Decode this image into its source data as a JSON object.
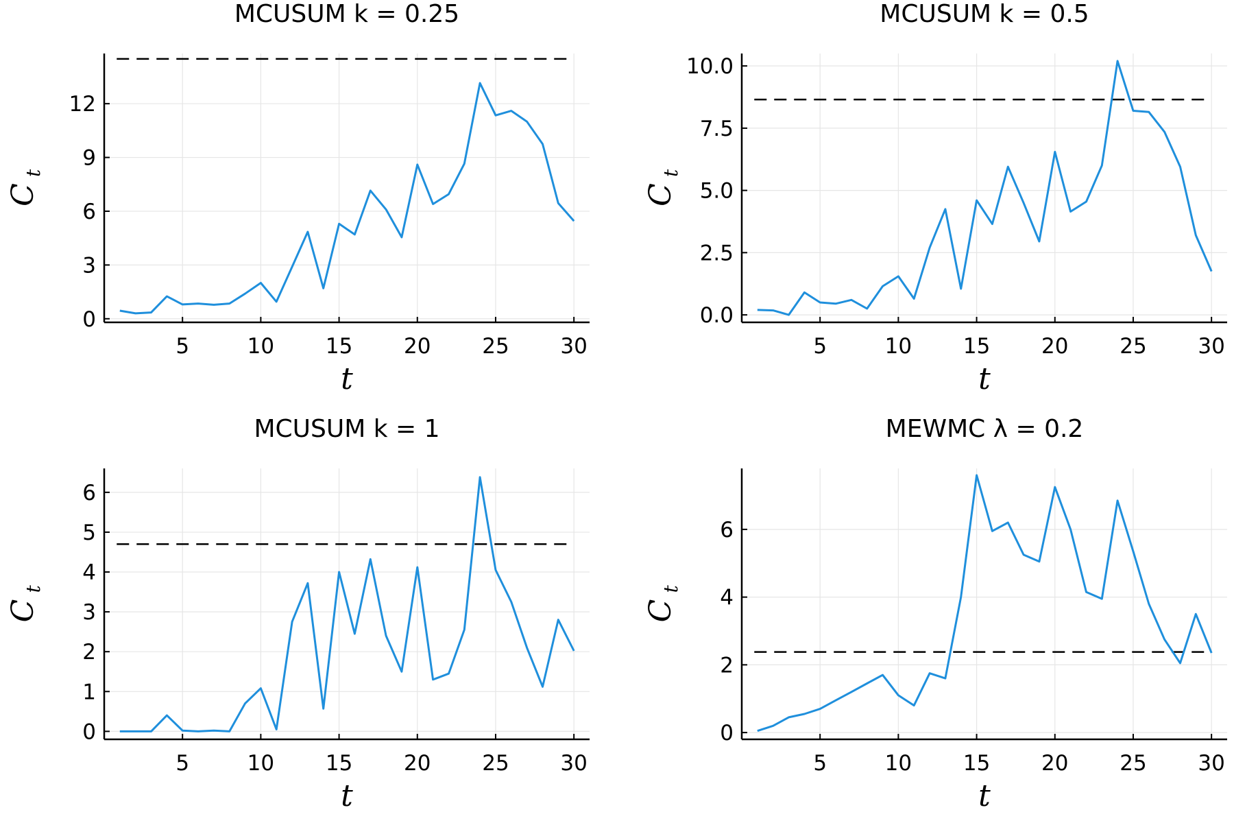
{
  "chart_data": [
    {
      "type": "line",
      "title": "MCUSUM k = 0.25",
      "xlabel": "t",
      "ylabel": "C",
      "ylabel_sub": "t",
      "xlim": [
        0,
        31
      ],
      "ylim": [
        -0.2,
        14.8
      ],
      "xticks": [
        5,
        10,
        15,
        20,
        25,
        30
      ],
      "yticks": [
        0,
        3,
        6,
        9,
        12
      ],
      "ytick_labels": [
        "0",
        "3",
        "6",
        "9",
        "12"
      ],
      "grid": true,
      "series": [
        {
          "color": "#1f8fdc",
          "x": [
            1,
            2,
            3,
            4,
            5,
            6,
            7,
            8,
            9,
            10,
            11,
            12,
            13,
            14,
            15,
            16,
            17,
            18,
            19,
            20,
            21,
            22,
            23,
            24,
            25,
            26,
            27,
            28,
            29,
            30
          ],
          "values": [
            0.45,
            0.3,
            0.35,
            1.25,
            0.8,
            0.85,
            0.78,
            0.85,
            1.4,
            2.0,
            0.95,
            2.9,
            4.85,
            1.7,
            5.3,
            4.7,
            7.15,
            6.1,
            4.55,
            8.6,
            6.4,
            6.95,
            8.65,
            13.15,
            11.35,
            11.6,
            11.0,
            9.75,
            6.45,
            5.45
          ]
        }
      ],
      "control_limit": 14.5
    },
    {
      "type": "line",
      "title": "MCUSUM k = 0.5",
      "xlabel": "t",
      "ylabel": "C",
      "ylabel_sub": "t",
      "xlim": [
        0,
        31
      ],
      "ylim": [
        -0.3,
        10.5
      ],
      "xticks": [
        5,
        10,
        15,
        20,
        25,
        30
      ],
      "yticks": [
        0,
        2.5,
        5,
        7.5,
        10
      ],
      "ytick_labels": [
        "0.0",
        "2.5",
        "5.0",
        "7.5",
        "10.0"
      ],
      "grid": true,
      "series": [
        {
          "color": "#1f8fdc",
          "x": [
            1,
            2,
            3,
            4,
            5,
            6,
            7,
            8,
            9,
            10,
            11,
            12,
            13,
            14,
            15,
            16,
            17,
            18,
            19,
            20,
            21,
            22,
            23,
            24,
            25,
            26,
            27,
            28,
            29,
            30
          ],
          "values": [
            0.2,
            0.18,
            0.0,
            0.9,
            0.5,
            0.45,
            0.6,
            0.25,
            1.15,
            1.55,
            0.65,
            2.7,
            4.25,
            1.05,
            4.6,
            3.65,
            5.95,
            4.5,
            2.95,
            6.55,
            4.15,
            4.55,
            6.0,
            10.2,
            8.2,
            8.15,
            7.35,
            5.95,
            3.2,
            1.75
          ]
        }
      ],
      "control_limit": 8.65
    },
    {
      "type": "line",
      "title": "MCUSUM k = 1",
      "xlabel": "t",
      "ylabel": "C",
      "ylabel_sub": "t",
      "xlim": [
        0,
        31
      ],
      "ylim": [
        -0.2,
        6.6
      ],
      "xticks": [
        5,
        10,
        15,
        20,
        25,
        30
      ],
      "yticks": [
        0,
        1,
        2,
        3,
        4,
        5,
        6
      ],
      "ytick_labels": [
        "0",
        "1",
        "2",
        "3",
        "4",
        "5",
        "6"
      ],
      "grid": true,
      "series": [
        {
          "color": "#1f8fdc",
          "x": [
            1,
            2,
            3,
            4,
            5,
            6,
            7,
            8,
            9,
            10,
            11,
            12,
            13,
            14,
            15,
            16,
            17,
            18,
            19,
            20,
            21,
            22,
            23,
            24,
            25,
            26,
            27,
            28,
            29,
            30
          ],
          "values": [
            0.0,
            0.0,
            0.0,
            0.4,
            0.02,
            0.0,
            0.02,
            0.0,
            0.7,
            1.08,
            0.05,
            2.75,
            3.72,
            0.57,
            4.0,
            2.45,
            4.32,
            2.4,
            1.5,
            4.12,
            1.3,
            1.45,
            2.55,
            6.38,
            4.05,
            3.25,
            2.1,
            1.12,
            2.8,
            2.02
          ]
        }
      ],
      "control_limit": 4.7
    },
    {
      "type": "line",
      "title": "MEWMC λ = 0.2",
      "xlabel": "t",
      "ylabel": "C",
      "ylabel_sub": "t",
      "xlim": [
        0,
        31
      ],
      "ylim": [
        -0.2,
        7.8
      ],
      "xticks": [
        5,
        10,
        15,
        20,
        25,
        30
      ],
      "yticks": [
        0,
        2,
        4,
        6
      ],
      "ytick_labels": [
        "0",
        "2",
        "4",
        "6"
      ],
      "grid": true,
      "series": [
        {
          "color": "#1f8fdc",
          "x": [
            1,
            2,
            3,
            4,
            5,
            6,
            7,
            8,
            9,
            10,
            11,
            12,
            13,
            14,
            15,
            16,
            17,
            18,
            19,
            20,
            21,
            22,
            23,
            24,
            25,
            26,
            27,
            28,
            29,
            30
          ],
          "values": [
            0.05,
            0.2,
            0.45,
            0.55,
            0.7,
            0.95,
            1.2,
            1.45,
            1.7,
            1.1,
            0.8,
            1.75,
            1.6,
            4.0,
            7.6,
            5.95,
            6.2,
            5.25,
            5.05,
            7.25,
            6.0,
            4.15,
            3.95,
            6.85,
            5.35,
            3.8,
            2.75,
            2.05,
            3.5,
            2.35
          ]
        }
      ],
      "control_limit": 2.38
    }
  ]
}
